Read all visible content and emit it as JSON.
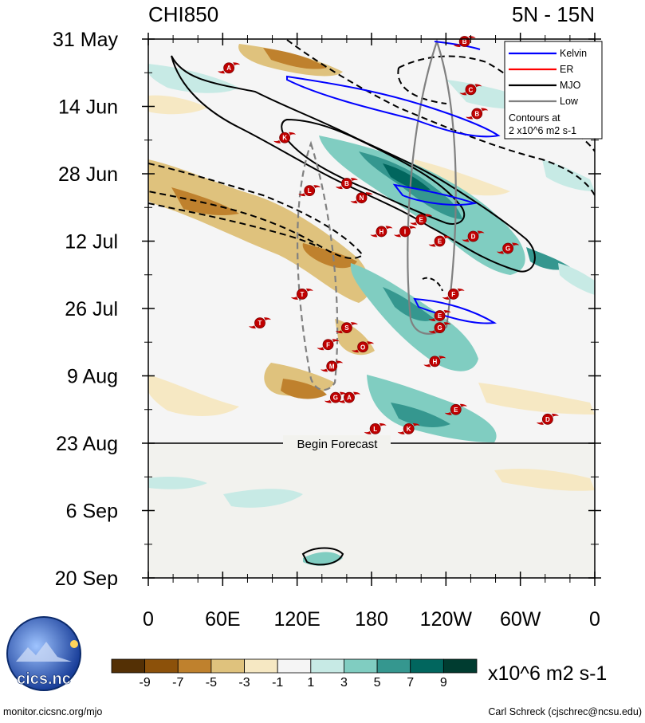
{
  "chart_data": {
    "type": "heatmap",
    "title_left": "CHI850",
    "title_right": "5N - 15N",
    "y_axis": {
      "labels": [
        "31 May",
        "14 Jun",
        "28 Jun",
        "12 Jul",
        "26 Jul",
        "9 Aug",
        "23 Aug",
        "6 Sep",
        "20 Sep"
      ],
      "range_days": [
        0,
        112
      ],
      "tick_interval_days": 14
    },
    "x_axis": {
      "labels": [
        "0",
        "60E",
        "120E",
        "180",
        "120W",
        "60W",
        "0"
      ],
      "range_deg": [
        0,
        360
      ],
      "tick_interval_deg": 60
    },
    "forecast": {
      "label": "Begin Forecast",
      "day": 84
    },
    "legend": {
      "items": [
        {
          "label": "Kelvin",
          "color": "#0000ff"
        },
        {
          "label": "ER",
          "color": "#ff0000"
        },
        {
          "label": "MJO",
          "color": "#000000"
        },
        {
          "label": "Low",
          "color": "#808080"
        }
      ],
      "note_line1": "Contours at",
      "note_line2": "2 x10^6 m2 s-1"
    },
    "colorbar": {
      "labels": [
        "-9",
        "-7",
        "-5",
        "-3",
        "-1",
        "1",
        "3",
        "5",
        "7",
        "9"
      ],
      "colors": [
        "#543005",
        "#8c510a",
        "#bf812d",
        "#dfc27d",
        "#f6e8c3",
        "#f5f5f5",
        "#c7eae5",
        "#80cdc1",
        "#35978f",
        "#01665e",
        "#003c30"
      ],
      "units": "x10^6 m2 s-1"
    },
    "storms": [
      {
        "letter": "A",
        "lon": 65,
        "day": 6
      },
      {
        "letter": "B",
        "lon": 255,
        "day": 0.5
      },
      {
        "letter": "C",
        "lon": 260,
        "day": 10.5
      },
      {
        "letter": "B",
        "lon": 265,
        "day": 15.5
      },
      {
        "letter": "K",
        "lon": 110,
        "day": 20.5
      },
      {
        "letter": "L",
        "lon": 130,
        "day": 31.5
      },
      {
        "letter": "B",
        "lon": 160,
        "day": 30
      },
      {
        "letter": "N",
        "lon": 172,
        "day": 33
      },
      {
        "letter": "E",
        "lon": 220,
        "day": 37.5
      },
      {
        "letter": "H",
        "lon": 188,
        "day": 40
      },
      {
        "letter": "I",
        "lon": 207,
        "day": 40
      },
      {
        "letter": "D",
        "lon": 262,
        "day": 41
      },
      {
        "letter": "E",
        "lon": 235,
        "day": 42
      },
      {
        "letter": "G",
        "lon": 290,
        "day": 43.5
      },
      {
        "letter": "T",
        "lon": 124,
        "day": 53
      },
      {
        "letter": "F",
        "lon": 246,
        "day": 53
      },
      {
        "letter": "E",
        "lon": 235,
        "day": 57.5
      },
      {
        "letter": "T",
        "lon": 90,
        "day": 59
      },
      {
        "letter": "S",
        "lon": 160,
        "day": 60
      },
      {
        "letter": "G",
        "lon": 235,
        "day": 60
      },
      {
        "letter": "F",
        "lon": 145,
        "day": 63.5
      },
      {
        "letter": "O",
        "lon": 173,
        "day": 64
      },
      {
        "letter": "H",
        "lon": 231,
        "day": 67
      },
      {
        "letter": "M",
        "lon": 148,
        "day": 68
      },
      {
        "letter": "G",
        "lon": 151,
        "day": 74.5
      },
      {
        "letter": "A",
        "lon": 162,
        "day": 74.5
      },
      {
        "letter": "E",
        "lon": 248,
        "day": 77
      },
      {
        "letter": "D",
        "lon": 322,
        "day": 79
      },
      {
        "letter": "L",
        "lon": 183,
        "day": 81
      },
      {
        "letter": "K",
        "lon": 210,
        "day": 81
      }
    ]
  },
  "footer": {
    "logo_text": "cics.nc",
    "left_credit": "monitor.cicsnc.org/mjo",
    "right_credit": "Carl Schreck (cjschrec@ncsu.edu)"
  }
}
